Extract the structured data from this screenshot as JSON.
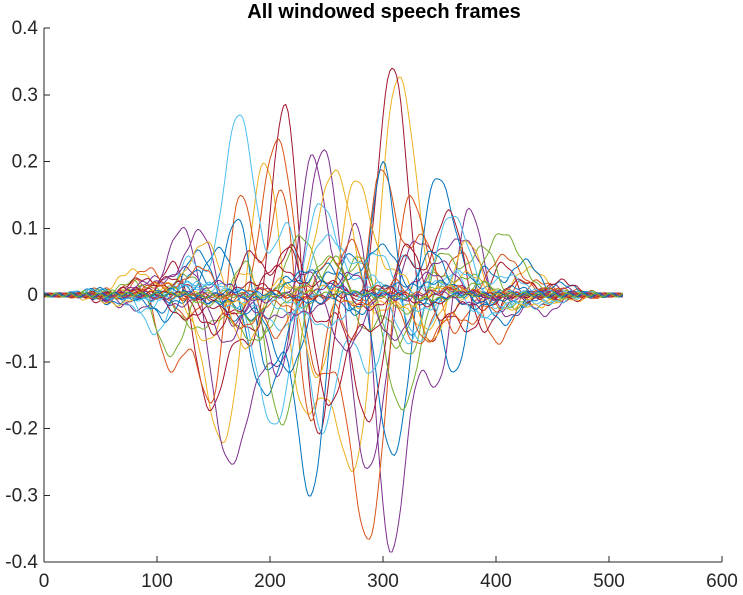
{
  "chart_data": {
    "type": "line",
    "title": "All windowed speech frames",
    "xlabel": "",
    "ylabel": "",
    "xlim": [
      0,
      600
    ],
    "ylim": [
      -0.4,
      0.4
    ],
    "xticks": [
      0,
      100,
      200,
      300,
      400,
      500,
      600
    ],
    "yticks": [
      -0.4,
      -0.3,
      -0.2,
      -0.1,
      0,
      0.1,
      0.2,
      0.3,
      0.4
    ],
    "frame_length_samples": 512,
    "grid": false,
    "legend": "none",
    "color_order": [
      "#0072BD",
      "#D95319",
      "#EDB120",
      "#7E2F8E",
      "#77AC30",
      "#4DBEEE",
      "#A2142F"
    ],
    "series": [
      {
        "peak_x": 240,
        "peak_y": 0.38,
        "amplitude": 0.33,
        "width": 60,
        "color_index": 2
      },
      {
        "peak_x": 245,
        "peak_y": 0.355,
        "amplitude": 0.3,
        "width": 55,
        "color_index": 6
      },
      {
        "peak_x": 205,
        "peak_y": 0.35,
        "amplitude": 0.3,
        "width": 60,
        "color_index": 3
      },
      {
        "peak_x": 320,
        "peak_y": 0.335,
        "amplitude": 0.3,
        "width": 55,
        "color_index": 3
      },
      {
        "peak_x": 300,
        "peak_y": 0.32,
        "amplitude": 0.28,
        "width": 60,
        "color_index": 1
      },
      {
        "peak_x": 175,
        "peak_y": 0.285,
        "amplitude": 0.26,
        "width": 55,
        "color_index": 1
      },
      {
        "peak_x": 330,
        "peak_y": 0.27,
        "amplitude": 0.22,
        "width": 60,
        "color_index": 0
      },
      {
        "peak_x": 165,
        "peak_y": 0.265,
        "amplitude": 0.24,
        "width": 55,
        "color_index": 5
      },
      {
        "peak_x": 285,
        "peak_y": 0.23,
        "amplitude": 0.22,
        "width": 70,
        "color_index": 0
      },
      {
        "peak_x": 350,
        "peak_y": 0.22,
        "amplitude": 0.2,
        "width": 55,
        "color_index": 4
      },
      {
        "peak_x": 420,
        "peak_y": 0.14,
        "amplitude": 0.13,
        "width": 65,
        "color_index": 4
      },
      {
        "peak_x": 380,
        "peak_y": 0.2,
        "amplitude": 0.18,
        "width": 65,
        "color_index": 6
      },
      {
        "peak_x": 140,
        "peak_y": 0.18,
        "amplitude": 0.17,
        "width": 55,
        "color_index": 4
      },
      {
        "peak_x": 260,
        "peak_y": 0.18,
        "amplitude": 0.16,
        "width": 80,
        "color_index": 5
      },
      {
        "peak_x": 460,
        "peak_y": 0.1,
        "amplitude": 0.1,
        "width": 60,
        "color_index": 0
      },
      {
        "peak_x": 110,
        "peak_y": 0.16,
        "amplitude": 0.14,
        "width": 55,
        "color_index": 0
      },
      {
        "peak_x": 200,
        "peak_y": 0.15,
        "amplitude": 0.14,
        "width": 60,
        "color_index": 2
      },
      {
        "peak_x": 310,
        "peak_y": 0.15,
        "amplitude": 0.14,
        "width": 70,
        "color_index": 2
      },
      {
        "peak_x": 230,
        "peak_y": 0.12,
        "amplitude": 0.12,
        "width": 70,
        "color_index": 6
      },
      {
        "peak_x": 410,
        "peak_y": 0.12,
        "amplitude": 0.11,
        "width": 60,
        "color_index": 1
      },
      {
        "peak_x": 360,
        "peak_y": 0.1,
        "amplitude": 0.1,
        "width": 70,
        "color_index": 5
      },
      {
        "peak_x": 150,
        "peak_y": 0.1,
        "amplitude": 0.09,
        "width": 60,
        "color_index": 3
      },
      {
        "peak_x": 270,
        "peak_y": 0.09,
        "amplitude": 0.08,
        "width": 75,
        "color_index": 1
      },
      {
        "peak_x": 440,
        "peak_y": 0.07,
        "amplitude": 0.07,
        "width": 65,
        "color_index": 5
      },
      {
        "peak_x": 90,
        "peak_y": 0.06,
        "amplitude": 0.06,
        "width": 55,
        "color_index": 6
      },
      {
        "peak_x": 330,
        "peak_y": 0.06,
        "amplitude": 0.06,
        "width": 80,
        "color_index": 3
      },
      {
        "peak_x": 250,
        "peak_y": 0.04,
        "amplitude": 0.04,
        "width": 90,
        "color_index": 4
      },
      {
        "peak_x": 300,
        "peak_y": 0.03,
        "amplitude": 0.03,
        "width": 100,
        "color_index": 0
      },
      {
        "peak_x": 200,
        "peak_y": 0.025,
        "amplitude": 0.025,
        "width": 100,
        "color_index": 5
      },
      {
        "peak_x": 380,
        "peak_y": 0.02,
        "amplitude": 0.02,
        "width": 100,
        "color_index": 2
      },
      {
        "peak_x": 256,
        "peak_y": 0.015,
        "amplitude": 0.015,
        "width": 120,
        "color_index": 6
      },
      {
        "peak_x": 256,
        "peak_y": 0.012,
        "amplitude": 0.012,
        "width": 130,
        "color_index": 1
      },
      {
        "peak_x": 256,
        "peak_y": 0.01,
        "amplitude": 0.01,
        "width": 140,
        "color_index": 3
      },
      {
        "peak_x": 256,
        "peak_y": 0.008,
        "amplitude": 0.008,
        "width": 150,
        "color_index": 0
      },
      {
        "peak_x": 256,
        "peak_y": 0.006,
        "amplitude": 0.006,
        "width": 160,
        "color_index": 4
      }
    ]
  }
}
